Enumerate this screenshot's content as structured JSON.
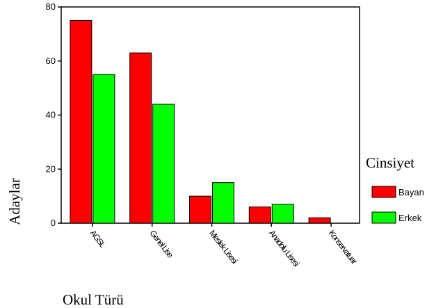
{
  "chart_data": {
    "type": "bar",
    "categories": [
      "AGSL",
      "Genel Lise",
      "Meslek Lisesi",
      "Anadolu Lisesi",
      "Konservatuar"
    ],
    "series": [
      {
        "name": "Bayan",
        "values": [
          75,
          63,
          10,
          6,
          2
        ],
        "color": "#ff0000"
      },
      {
        "name": "Erkek",
        "values": [
          55,
          44,
          15,
          7,
          0
        ],
        "color": "#00ff00"
      }
    ],
    "xlabel": "Okul Türü",
    "ylabel": "Adaylar",
    "ylim": [
      0,
      80
    ],
    "yticks": [
      0,
      20,
      40,
      60,
      80
    ],
    "grid": false,
    "legend": {
      "title": "Cinsiyet",
      "placement": "right"
    }
  }
}
